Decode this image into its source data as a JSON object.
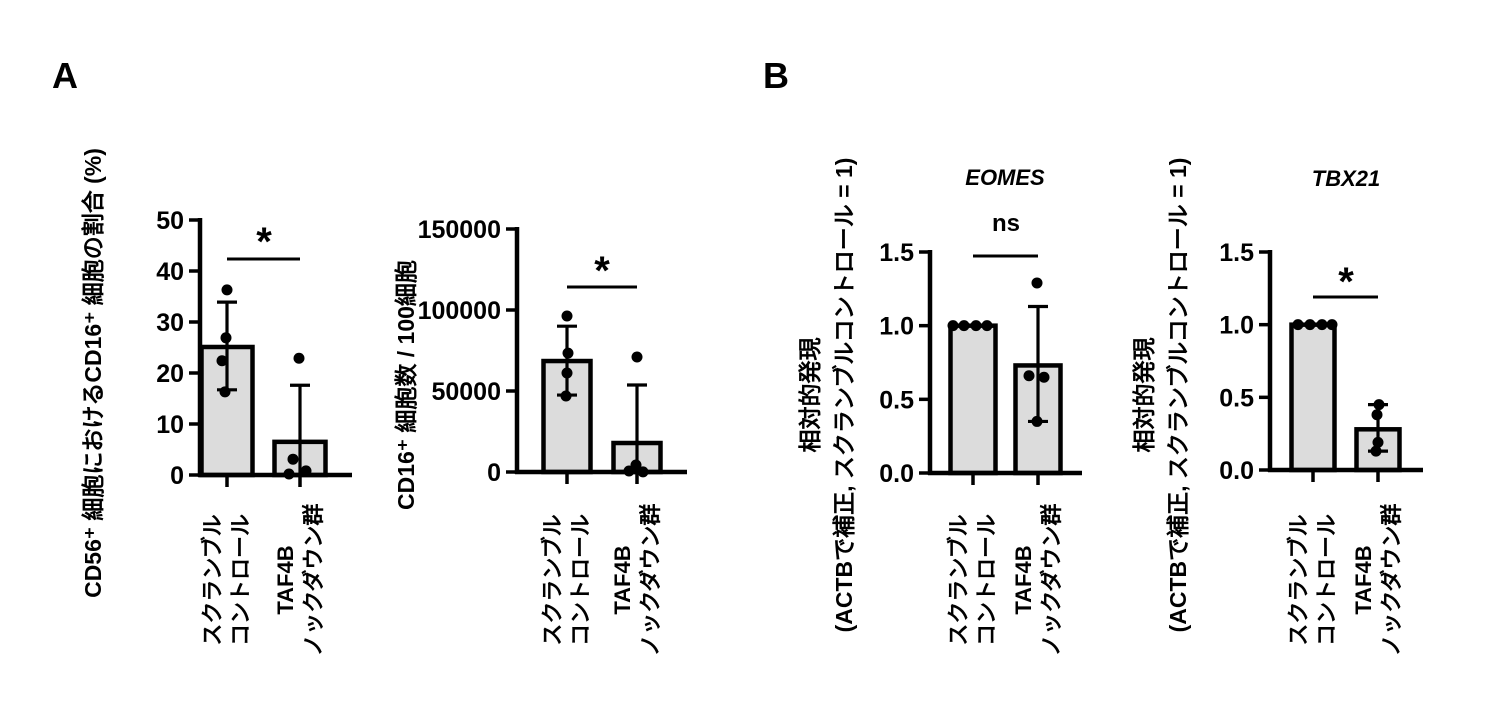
{
  "figure": {
    "panels": [
      {
        "label": "A"
      },
      {
        "label": "B"
      }
    ]
  },
  "colors": {
    "background": "#ffffff",
    "line": "#000000",
    "bar_fill": "#dcdcdc",
    "point_fill": "#000000"
  },
  "chart_data": [
    {
      "type": "bar",
      "panel": "A",
      "title": "",
      "ylabel": "CD56⁺ 細胞におけるCD16⁺ 細胞の割合 (%)",
      "categories": [
        [
          "スクランブル",
          "コントロール"
        ],
        [
          "TAF4B",
          "ノックダウン群"
        ]
      ],
      "y_ticks": [
        0,
        10,
        20,
        30,
        40,
        50
      ],
      "y_tick_labels": [
        "0",
        "10",
        "20",
        "30",
        "40",
        "50"
      ],
      "ylim": [
        0,
        50
      ],
      "grid": false,
      "significance": "*",
      "series": [
        {
          "name": "スクランブルコントロール",
          "mean": 25.1,
          "err_lo": 16.7,
          "err_hi": 33.9,
          "points": [
            36.3,
            26.9,
            22.4,
            16.3
          ],
          "point_dx": [
            0,
            -1,
            -5,
            -2
          ]
        },
        {
          "name": "TAF4Bノックダウン群",
          "mean": 6.5,
          "err_lo": null,
          "err_hi": 17.6,
          "points": [
            22.9,
            3.1,
            0.8,
            0.2
          ],
          "point_dx": [
            -1,
            -7,
            6,
            -11
          ]
        }
      ]
    },
    {
      "type": "bar",
      "panel": "A",
      "title": "",
      "ylabel": "CD16⁺ 細胞数 / 100細胞",
      "categories": [
        [
          "スクランブル",
          "コントロール"
        ],
        [
          "TAF4B",
          "ノックダウン群"
        ]
      ],
      "y_ticks": [
        0,
        50000,
        100000,
        150000
      ],
      "y_tick_labels": [
        "0",
        "50000",
        "100000",
        "150000"
      ],
      "ylim": [
        0,
        150000
      ],
      "grid": false,
      "significance": "*",
      "series": [
        {
          "name": "スクランブルコントロール",
          "mean": 68500,
          "err_lo": 47500,
          "err_hi": 90000,
          "points": [
            96300,
            73400,
            61100,
            46900
          ],
          "point_dx": [
            0,
            1,
            0,
            -1
          ]
        },
        {
          "name": "TAF4Bノックダウン群",
          "mean": 17900,
          "err_lo": null,
          "err_hi": 53700,
          "points": [
            71000,
            4300,
            600,
            100
          ],
          "point_dx": [
            0,
            -1,
            -8,
            6
          ]
        }
      ]
    },
    {
      "type": "bar",
      "panel": "B",
      "title": "EOMES",
      "ylabel_lines": [
        "相対的発現",
        "(ACTBで補正, スクランブルコントロール = 1)"
      ],
      "categories": [
        [
          "スクランブル",
          "コントロール"
        ],
        [
          "TAF4B",
          "ノックダウン群"
        ]
      ],
      "y_ticks": [
        0,
        0.5,
        1,
        1.5
      ],
      "y_tick_labels": [
        "0.0",
        "0.5",
        "1.0",
        "1.5"
      ],
      "ylim": [
        0,
        1.5
      ],
      "grid": false,
      "significance": "ns",
      "series": [
        {
          "name": "スクランブルコントロール",
          "mean": 1.0,
          "err_lo": null,
          "err_hi": null,
          "points": [
            1.0,
            1.0,
            1.0,
            1.0
          ],
          "point_dx": [
            -20,
            -9,
            3,
            14
          ]
        },
        {
          "name": "TAF4Bノックダウン群",
          "mean": 0.73,
          "err_lo": 0.35,
          "err_hi": 1.13,
          "points": [
            1.29,
            0.66,
            0.65,
            0.35
          ],
          "point_dx": [
            -1,
            -9,
            6,
            -1
          ]
        }
      ]
    },
    {
      "type": "bar",
      "panel": "B",
      "title": "TBX21",
      "ylabel_lines": [
        "相対的発現",
        "(ACTBで補正, スクランブルコントロール = 1)"
      ],
      "categories": [
        [
          "スクランブル",
          "コントロール"
        ],
        [
          "TAF4B",
          "ノックダウン群"
        ]
      ],
      "y_ticks": [
        0,
        0.5,
        1,
        1.5
      ],
      "y_tick_labels": [
        "0.0",
        "0.5",
        "1.0",
        "1.5"
      ],
      "ylim": [
        0,
        1.5
      ],
      "grid": false,
      "significance": "*",
      "series": [
        {
          "name": "スクランブルコントロール",
          "mean": 1.0,
          "err_lo": null,
          "err_hi": null,
          "points": [
            1.0,
            1.0,
            1.0,
            1.0
          ],
          "point_dx": [
            -15,
            -3,
            9,
            19
          ]
        },
        {
          "name": "TAF4Bノックダウン群",
          "mean": 0.28,
          "err_lo": 0.13,
          "err_hi": 0.45,
          "points": [
            0.45,
            0.38,
            0.19,
            0.13
          ],
          "point_dx": [
            1,
            -1,
            0,
            -2
          ]
        }
      ]
    }
  ]
}
